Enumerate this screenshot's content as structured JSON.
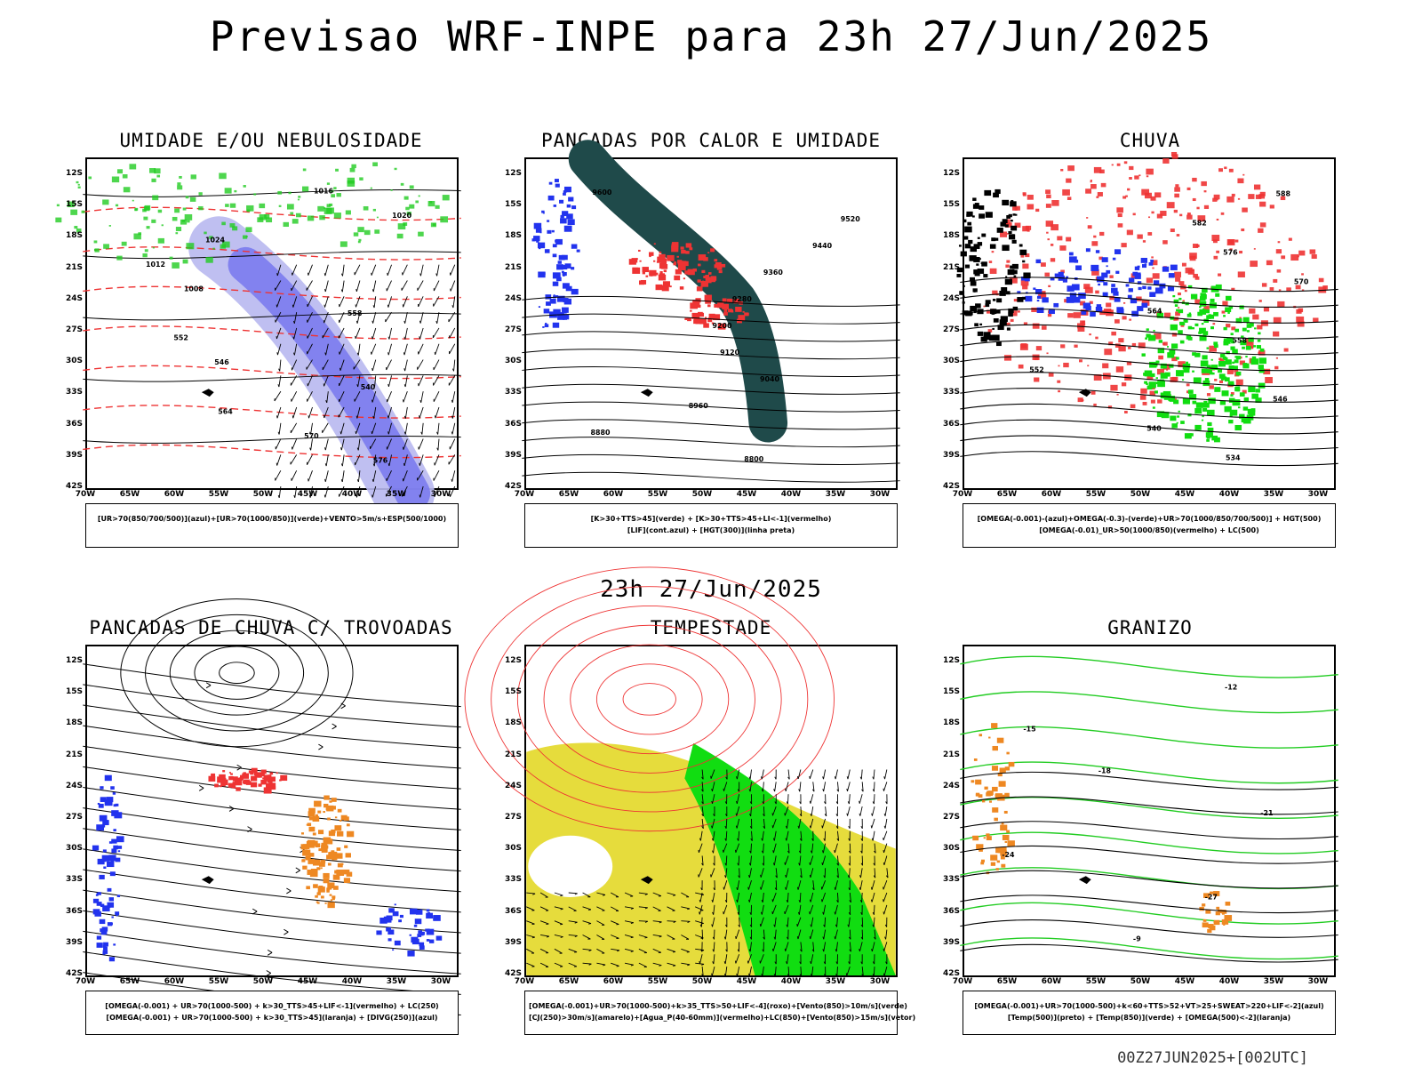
{
  "header": {
    "title": "Previsao WRF-INPE  para 23h 27/Jun/2025",
    "mid_time": "23h 27/Jun/2025",
    "footer": "00Z27JUN2025+[002UTC]"
  },
  "axes": {
    "y_ticks": [
      "12S",
      "15S",
      "18S",
      "21S",
      "24S",
      "27S",
      "30S",
      "33S",
      "36S",
      "39S",
      "42S"
    ],
    "x_ticks": [
      "70W",
      "65W",
      "60W",
      "55W",
      "50W",
      "45W",
      "40W",
      "35W",
      "30W"
    ]
  },
  "panels": [
    {
      "title": "UMIDADE E/OU NEBULOSIDADE",
      "legend": [
        "[UR>70(850/700/500)](azul)+[UR>70(1000/850)](verde)+VENTO>5m/s+ESP(500/1000)"
      ],
      "contour_labels": [
        "1016",
        "1020",
        "1024",
        "1012",
        "1008",
        "558",
        "552",
        "546",
        "540",
        "564",
        "570",
        "576"
      ]
    },
    {
      "title": "PANCADAS POR CALOR E UMIDADE",
      "legend": [
        "[K>30+TTS>45](verde)  +  [K>30+TTS>45+LI<-1](vermelho)",
        "[LIF](cont.azul)  +  [HGT(300)](linha preta)"
      ],
      "contour_labels": [
        "9600",
        "9520",
        "9440",
        "9360",
        "9280",
        "9200",
        "9120",
        "9040",
        "8960",
        "8880",
        "8800"
      ]
    },
    {
      "title": "CHUVA",
      "legend": [
        "[OMEGA(-0.001)-(azul)+OMEGA(-0.3)-(verde)+UR>70(1000/850/700/500)]  +  HGT(500)",
        "[OMEGA(-0.01)_UR>50(1000/850)(vermelho)  +  LC(500)"
      ],
      "contour_labels": [
        "588",
        "582",
        "576",
        "570",
        "564",
        "558",
        "552",
        "546",
        "540",
        "534"
      ]
    },
    {
      "title": "PANCADAS DE CHUVA C/ TROVOADAS",
      "legend": [
        "[OMEGA(-0.001)  +  UR>70(1000-500)  +  k>30_TTS>45+LIF<-1](vermelho)  +  LC(250)",
        "[OMEGA(-0.001)  +  UR>70(1000-500)  +  k>30_TTS>45](laranja)  +  [DIVG(250)](azul)"
      ],
      "contour_labels": []
    },
    {
      "title": "TEMPESTADE",
      "legend": [
        "[OMEGA(-0.001)+UR>70(1000-500)+k>35_TTS>50+LIF<-4](roxo)+[Vento(850)>10m/s](verde)",
        "[CJ(250)>30m/s](amarelo)+[Agua_P(40-60mm)](vermelho)+LC(850)+[Vento(850)>15m/s](vetor)"
      ],
      "contour_labels": []
    },
    {
      "title": "GRANIZO",
      "legend": [
        "[OMEGA(-0.001)+UR>70(1000-500)+k<60+TTS>52+VT>25+SWEAT>220+LIF<-2](azul)",
        "[Temp(500)](preto)  +  [Temp(850)](verde)  +  [OMEGA(500)<-2](laranja)"
      ],
      "contour_labels": [
        "-12",
        "-15",
        "-18",
        "-21",
        "-24",
        "-27",
        "-9"
      ]
    }
  ],
  "colors": {
    "green": "#22cc22",
    "bright_green": "#11dd11",
    "red": "#ee3333",
    "blue": "#2233ee",
    "lavender": "#b8b8f0",
    "mid_blue": "#7777ee",
    "dark_teal": "#1f4a4a",
    "orange": "#ee8822",
    "yellow": "#e6dc3c",
    "black": "#000000"
  }
}
